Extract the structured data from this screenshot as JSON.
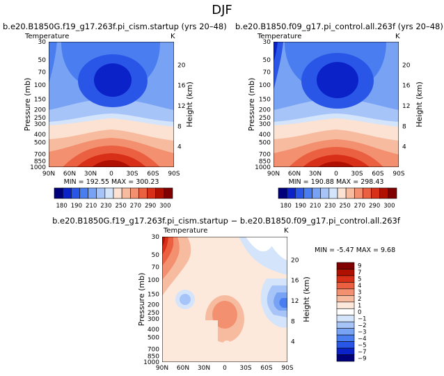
{
  "page": {
    "title": "DJF"
  },
  "chart_data": [
    {
      "type": "heatmap",
      "title": "b.e20.B1850G.f19_g17.263f.pi_cism.startup (yrs 20–48)",
      "left_label": "Temperature",
      "right_label": "K",
      "ylabel": "Pressure (mb)",
      "y2label": "Height (km)",
      "x_ticks": [
        "90N",
        "60N",
        "30N",
        "0",
        "30S",
        "60S",
        "90S"
      ],
      "y_ticks": [
        "30",
        "50",
        "70",
        "100",
        "150",
        "200",
        "250",
        "300",
        "400",
        "500",
        "700",
        "850",
        "1000"
      ],
      "y2_ticks": [
        "20",
        "16",
        "12",
        "8",
        "4"
      ],
      "stats": {
        "min_label": "MIN =",
        "min": "192.55",
        "max_label": "MAX =",
        "max": "300.23"
      },
      "colorbar_labels": [
        "180",
        "190",
        "210",
        "230",
        "250",
        "270",
        "290",
        "300"
      ]
    },
    {
      "type": "heatmap",
      "title": "b.e20.B1850.f09_g17.pi_control.all.263f (yrs 20–48)",
      "left_label": "Temperature",
      "right_label": "K",
      "ylabel": "Pressure (mb)",
      "y2label": "Height (km)",
      "x_ticks": [
        "90N",
        "60N",
        "30N",
        "0",
        "30S",
        "60S",
        "90S"
      ],
      "y_ticks": [
        "30",
        "50",
        "70",
        "100",
        "150",
        "200",
        "250",
        "300",
        "400",
        "500",
        "700",
        "850",
        "1000"
      ],
      "y2_ticks": [
        "20",
        "16",
        "12",
        "8",
        "4"
      ],
      "stats": {
        "min_label": "MIN =",
        "min": "190.88",
        "max_label": "MAX =",
        "max": "298.43"
      },
      "colorbar_labels": [
        "180",
        "190",
        "210",
        "230",
        "250",
        "270",
        "290",
        "300"
      ]
    },
    {
      "type": "heatmap",
      "title": "b.e20.B1850G.f19_g17.263f.pi_cism.startup − b.e20.B1850.f09_g17.pi_control.all.263f",
      "left_label": "Temperature",
      "right_label": "K",
      "ylabel": "Pressure (mb)",
      "y2label": "Height (km)",
      "x_ticks": [
        "90N",
        "60N",
        "30N",
        "0",
        "30S",
        "60S",
        "90S"
      ],
      "y_ticks": [
        "30",
        "50",
        "70",
        "100",
        "150",
        "200",
        "250",
        "300",
        "400",
        "500",
        "700",
        "850",
        "1000"
      ],
      "y2_ticks": [
        "20",
        "16",
        "12",
        "8",
        "4"
      ],
      "stats": {
        "min_label": "MIN =",
        "min": "-5.47",
        "max_label": "MAX =",
        "max": "9.68"
      },
      "colorbar_labels": [
        "9",
        "7",
        "5",
        "4",
        "3",
        "2",
        "1",
        "0",
        "−1",
        "−2",
        "−3",
        "−4",
        "−5",
        "−7",
        "−9"
      ]
    }
  ],
  "palettes": {
    "temperature": [
      "#00007a",
      "#0a22c8",
      "#2a56e8",
      "#4a7ef0",
      "#78a2f4",
      "#a6c4f8",
      "#d4e4fb",
      "#fbe2d2",
      "#f7bca0",
      "#f29070",
      "#ea6040",
      "#d83018",
      "#b01000",
      "#800000"
    ],
    "difference": [
      "#800000",
      "#b01000",
      "#d83018",
      "#ea6040",
      "#f29070",
      "#f7bca0",
      "#fde8dc",
      "#ffffff",
      "#d4e4fb",
      "#a6c4f8",
      "#78a2f4",
      "#4a7ef0",
      "#2a56e8",
      "#0a22c8",
      "#00007a"
    ]
  }
}
